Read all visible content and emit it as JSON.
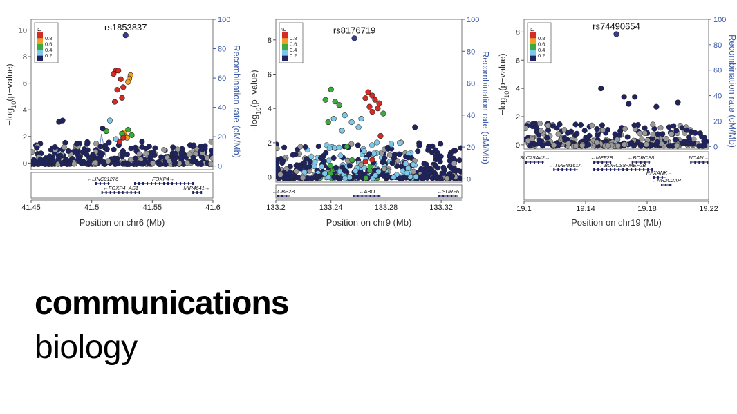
{
  "journal": {
    "line1": "communications",
    "line2": "biology"
  },
  "colors": {
    "ld_levels": [
      "#1f2461",
      "#7dc8e8",
      "#3daa3d",
      "#f0a020",
      "#d62a24"
    ],
    "lead_snp": "#3b3b8f",
    "recomb_axis": "#3a59a8",
    "gene": "#1f2461"
  },
  "legend": {
    "title": "r²",
    "labels": [
      "0.8",
      "0.6",
      "0.4",
      "0.2"
    ]
  },
  "chart_data": [
    {
      "type": "scatter",
      "lead_snp": {
        "label": "rs1853837",
        "x": 41.528,
        "y": 9.6
      },
      "xlabel": "Position on chr6 (Mb)",
      "ylabel": "−log10(p−value)",
      "y2label": "Recombination rate (cM/Mb)",
      "xlim": [
        41.45,
        41.6
      ],
      "ylim": [
        -0.5,
        10.8
      ],
      "y2lim": [
        -2.5,
        100
      ],
      "xticks": [
        41.45,
        41.5,
        41.55,
        41.6
      ],
      "xtick_labels": [
        "41.45",
        "41.5",
        "41.55",
        "41.6"
      ],
      "yticks": [
        0,
        2,
        4,
        6,
        8,
        10
      ],
      "y2ticks": [
        0,
        20,
        40,
        60,
        80,
        100
      ],
      "highlight_points": [
        {
          "x": 41.52,
          "y": 6.95,
          "ld": 4
        },
        {
          "x": 41.522,
          "y": 6.95,
          "ld": 4
        },
        {
          "x": 41.518,
          "y": 6.7,
          "ld": 4
        },
        {
          "x": 41.524,
          "y": 6.3,
          "ld": 4
        },
        {
          "x": 41.521,
          "y": 5.5,
          "ld": 4
        },
        {
          "x": 41.526,
          "y": 5.7,
          "ld": 4
        },
        {
          "x": 41.519,
          "y": 4.6,
          "ld": 4
        },
        {
          "x": 41.525,
          "y": 4.9,
          "ld": 4
        },
        {
          "x": 41.532,
          "y": 6.6,
          "ld": 3
        },
        {
          "x": 41.531,
          "y": 6.35,
          "ld": 3
        },
        {
          "x": 41.53,
          "y": 6.1,
          "ld": 3
        },
        {
          "x": 41.527,
          "y": 2.3,
          "ld": 3
        },
        {
          "x": 41.528,
          "y": 2.0,
          "ld": 3
        },
        {
          "x": 41.529,
          "y": 1.9,
          "ld": 3
        },
        {
          "x": 41.512,
          "y": 2.4,
          "ld": 2
        },
        {
          "x": 41.53,
          "y": 2.5,
          "ld": 2
        },
        {
          "x": 41.525,
          "y": 2.2,
          "ld": 2
        },
        {
          "x": 41.533,
          "y": 2.1,
          "ld": 2
        },
        {
          "x": 41.515,
          "y": 3.2,
          "ld": 1
        },
        {
          "x": 41.52,
          "y": 1.8,
          "ld": 1
        },
        {
          "x": 41.523,
          "y": 1.6,
          "ld": 4
        },
        {
          "x": 41.526,
          "y": 1.9,
          "ld": 4
        },
        {
          "x": 41.473,
          "y": 3.1,
          "ld": 0
        },
        {
          "x": 41.476,
          "y": 3.2,
          "ld": 0
        },
        {
          "x": 41.509,
          "y": 2.6,
          "ld": 0
        }
      ],
      "recombination": [
        [
          41.45,
          2
        ],
        [
          41.465,
          3
        ],
        [
          41.47,
          14
        ],
        [
          41.475,
          4
        ],
        [
          41.49,
          3
        ],
        [
          41.505,
          2
        ],
        [
          41.508,
          22
        ],
        [
          41.512,
          5
        ],
        [
          41.52,
          3
        ],
        [
          41.53,
          2
        ],
        [
          41.56,
          2
        ],
        [
          41.6,
          3
        ]
      ],
      "genes": [
        {
          "name": "LINC01276",
          "start": 41.503,
          "end": 41.515,
          "row": 0,
          "strand": "-"
        },
        {
          "name": "FOXP4",
          "start": 41.535,
          "end": 41.583,
          "row": 0,
          "strand": "+"
        },
        {
          "name": "FOXP4−AS1",
          "start": 41.508,
          "end": 41.54,
          "row": 1,
          "strand": "-"
        },
        {
          "name": "MIR4641",
          "start": 41.583,
          "end": 41.59,
          "row": 1,
          "strand": "+"
        }
      ],
      "background": {
        "seed": 11,
        "n": 320,
        "ymax": 1.7
      }
    },
    {
      "type": "scatter",
      "lead_snp": {
        "label": "rs8176719",
        "x": 133.257,
        "y": 8.1
      },
      "xlabel": "Position on chr9 (Mb)",
      "ylabel": "−log10(p−value)",
      "y2label": "Recombination rate (cM/Mb)",
      "xlim": [
        133.2,
        133.335
      ],
      "ylim": [
        -0.3,
        9.2
      ],
      "y2lim": [
        -2,
        100
      ],
      "xticks": [
        133.2,
        133.24,
        133.28,
        133.32
      ],
      "xtick_labels": [
        "133.2",
        "133.24",
        "133.28",
        "133.32"
      ],
      "yticks": [
        0,
        2,
        4,
        6,
        8
      ],
      "y2ticks": [
        0,
        20,
        40,
        60,
        80,
        100
      ],
      "highlight_points": [
        {
          "x": 133.267,
          "y": 4.95,
          "ld": 4
        },
        {
          "x": 133.27,
          "y": 4.75,
          "ld": 4
        },
        {
          "x": 133.272,
          "y": 4.5,
          "ld": 4
        },
        {
          "x": 133.275,
          "y": 4.3,
          "ld": 4
        },
        {
          "x": 133.268,
          "y": 4.1,
          "ld": 4
        },
        {
          "x": 133.274,
          "y": 4.0,
          "ld": 4
        },
        {
          "x": 133.27,
          "y": 3.8,
          "ld": 4
        },
        {
          "x": 133.265,
          "y": 4.6,
          "ld": 4
        },
        {
          "x": 133.24,
          "y": 5.1,
          "ld": 2
        },
        {
          "x": 133.236,
          "y": 4.5,
          "ld": 2
        },
        {
          "x": 133.243,
          "y": 4.4,
          "ld": 2
        },
        {
          "x": 133.278,
          "y": 3.7,
          "ld": 2
        },
        {
          "x": 133.246,
          "y": 4.2,
          "ld": 2
        },
        {
          "x": 133.238,
          "y": 3.2,
          "ld": 2
        },
        {
          "x": 133.242,
          "y": 3.4,
          "ld": 1
        },
        {
          "x": 133.25,
          "y": 3.6,
          "ld": 1
        },
        {
          "x": 133.255,
          "y": 3.2,
          "ld": 1
        },
        {
          "x": 133.26,
          "y": 2.9,
          "ld": 1
        },
        {
          "x": 133.248,
          "y": 2.7,
          "ld": 1
        },
        {
          "x": 133.262,
          "y": 3.4,
          "ld": 1
        },
        {
          "x": 133.276,
          "y": 2.4,
          "ld": 4
        },
        {
          "x": 133.265,
          "y": 0.9,
          "ld": 4
        },
        {
          "x": 133.27,
          "y": 1.0,
          "ld": 4
        },
        {
          "x": 133.301,
          "y": 2.9,
          "ld": 0
        }
      ],
      "recombination": [
        [
          133.2,
          2
        ],
        [
          133.26,
          2
        ],
        [
          133.3,
          3
        ],
        [
          133.335,
          2
        ]
      ],
      "genes": [
        {
          "name": "OBP2B",
          "start": 133.2,
          "end": 133.21,
          "row": 0,
          "strand": "-"
        },
        {
          "name": "ABO",
          "start": 133.256,
          "end": 133.276,
          "row": 0,
          "strand": "-"
        },
        {
          "name": "SURF6",
          "start": 133.318,
          "end": 133.332,
          "row": 0,
          "strand": "-"
        }
      ],
      "background": {
        "seed": 29,
        "n": 420,
        "ymax": 2.1
      }
    },
    {
      "type": "scatter",
      "lead_snp": {
        "label": "rs74490654",
        "x": 19.16,
        "y": 7.85
      },
      "xlabel": "Position on chr19 (Mb)",
      "ylabel": "−log10(p−value)",
      "y2label": "Recombination rate (cM/Mb)",
      "xlim": [
        19.1,
        19.22
      ],
      "ylim": [
        -0.3,
        8.9
      ],
      "y2lim": [
        -2,
        100
      ],
      "xticks": [
        19.1,
        19.14,
        19.18,
        19.22
      ],
      "xtick_labels": [
        "19.1",
        "19.14",
        "19.18",
        "19.22"
      ],
      "yticks": [
        0,
        2,
        4,
        6,
        8
      ],
      "y2ticks": [
        0,
        20,
        40,
        60,
        80,
        100
      ],
      "highlight_points": [
        {
          "x": 19.15,
          "y": 4.0,
          "ld": 0
        },
        {
          "x": 19.172,
          "y": 3.4,
          "ld": 0
        },
        {
          "x": 19.165,
          "y": 3.4,
          "ld": 0
        },
        {
          "x": 19.168,
          "y": 2.9,
          "ld": 0
        },
        {
          "x": 19.186,
          "y": 2.7,
          "ld": 0
        },
        {
          "x": 19.2,
          "y": 3.0,
          "ld": 0
        }
      ],
      "recombination": [
        [
          19.1,
          2
        ],
        [
          19.16,
          3
        ],
        [
          19.22,
          2
        ]
      ],
      "genes": [
        {
          "name": "SLC25A42",
          "start": 19.1,
          "end": 19.113,
          "row": 0,
          "strand": "+"
        },
        {
          "name": "MEF2B",
          "start": 19.145,
          "end": 19.156,
          "row": 0,
          "strand": "-"
        },
        {
          "name": "BORCS8",
          "start": 19.17,
          "end": 19.182,
          "row": 0,
          "strand": "-"
        },
        {
          "name": "NCAN",
          "start": 19.208,
          "end": 19.22,
          "row": 0,
          "strand": "+"
        },
        {
          "name": "TMEM161A",
          "start": 19.119,
          "end": 19.135,
          "row": 1,
          "strand": "-"
        },
        {
          "name": "BORCS8−MEF2B",
          "start": 19.145,
          "end": 19.183,
          "row": 1,
          "strand": "-"
        },
        {
          "name": "RFXANK",
          "start": 19.184,
          "end": 19.192,
          "row": 2,
          "strand": "+"
        },
        {
          "name": "NR2C2AP",
          "start": 19.189,
          "end": 19.196,
          "row": 3,
          "strand": "-"
        }
      ],
      "background": {
        "seed": 47,
        "n": 300,
        "ymax": 1.6
      }
    }
  ]
}
